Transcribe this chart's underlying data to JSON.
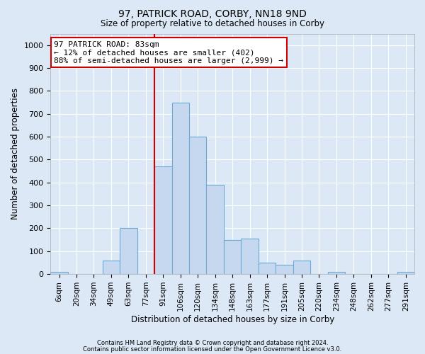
{
  "title1": "97, PATRICK ROAD, CORBY, NN18 9ND",
  "title2": "Size of property relative to detached houses in Corby",
  "xlabel": "Distribution of detached houses by size in Corby",
  "ylabel": "Number of detached properties",
  "categories": [
    "6sqm",
    "20sqm",
    "34sqm",
    "49sqm",
    "63sqm",
    "77sqm",
    "91sqm",
    "106sqm",
    "120sqm",
    "134sqm",
    "148sqm",
    "163sqm",
    "177sqm",
    "191sqm",
    "205sqm",
    "220sqm",
    "234sqm",
    "248sqm",
    "262sqm",
    "277sqm",
    "291sqm"
  ],
  "values": [
    10,
    0,
    0,
    60,
    200,
    0,
    470,
    750,
    600,
    390,
    150,
    155,
    50,
    40,
    60,
    0,
    10,
    0,
    0,
    0,
    10
  ],
  "bar_color": "#c5d8f0",
  "bar_edge_color": "#6aaad4",
  "vline_color": "#cc0000",
  "vline_index": 6,
  "ylim": [
    0,
    1050
  ],
  "yticks": [
    0,
    100,
    200,
    300,
    400,
    500,
    600,
    700,
    800,
    900,
    1000
  ],
  "annotation_line1": "97 PATRICK ROAD: 83sqm",
  "annotation_line2": "← 12% of detached houses are smaller (402)",
  "annotation_line3": "88% of semi-detached houses are larger (2,999) →",
  "annotation_box_color": "#ffffff",
  "annotation_box_edge_color": "#cc0000",
  "footnote1": "Contains HM Land Registry data © Crown copyright and database right 2024.",
  "footnote2": "Contains public sector information licensed under the Open Government Licence v3.0.",
  "background_color": "#dce8f5",
  "plot_bg_color": "#dce8f5",
  "grid_color": "#ffffff"
}
